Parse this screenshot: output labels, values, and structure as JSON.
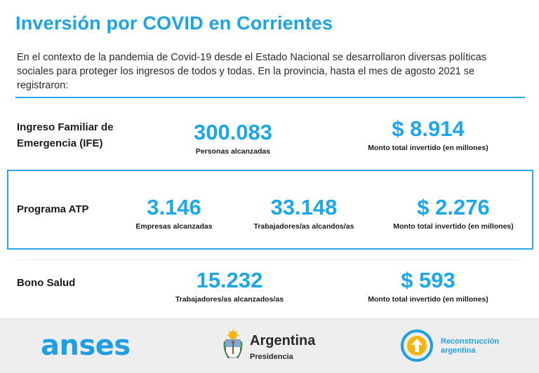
{
  "title": "Inversión por COVID en Corrientes",
  "intro": "En el contexto de la pandemia de Covid-19 desde el Estado Nacional se desarrollaron diversas políticas sociales para proteger los ingresos de todos y todas. En la provincia, hasta el mes de agosto 2021 se registraron:",
  "ife": {
    "label_line1": "Ingreso Familiar de",
    "label_line2": "Emergencia (IFE)",
    "stats": [
      {
        "value": "300.083",
        "caption": "Personas alcanzadas"
      },
      {
        "value": "$ 8.914",
        "caption": "Monto total invertido (en millones)"
      }
    ]
  },
  "atp": {
    "label": "Programa ATP",
    "stats": [
      {
        "value": "3.146",
        "caption": "Empresas alcanzadas"
      },
      {
        "value": "33.148",
        "caption": "Trabajadores/as alcandos/as"
      },
      {
        "value": "$ 2.276",
        "caption": "Monto total invertido (en millones)"
      }
    ]
  },
  "bono": {
    "label": "Bono Salud",
    "stats": [
      {
        "value": "15.232",
        "caption": "Trabajadores/as alcanzados/as"
      },
      {
        "value": "$ 593",
        "caption": "Monto total invertido (en millones)"
      }
    ]
  },
  "footer": {
    "anses": "anses",
    "argentina_name": "Argentina",
    "argentina_sub": "Presidencia",
    "recon_line1": "Reconstrucción",
    "recon_line2": "argentina"
  },
  "colors": {
    "accent": "#1ca6eb",
    "rule": "#2aa7e6",
    "footer_bg": "#eeeeee",
    "arg_blue": "#74acdf",
    "sun": "#f6b40e"
  },
  "icons": {
    "argentina": "argentina-coat-of-arms-icon",
    "reconstruccion": "reconstruccion-arrow-logo-icon"
  }
}
